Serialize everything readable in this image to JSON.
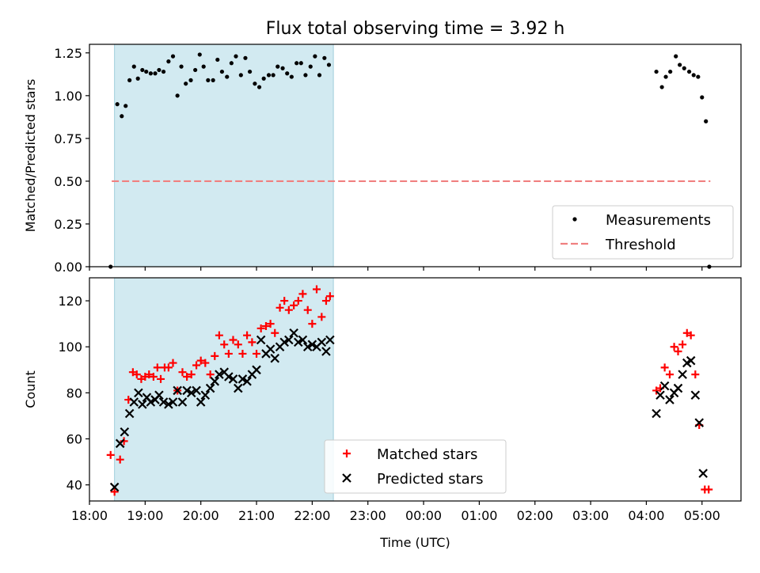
{
  "chart_data": [
    {
      "type": "scatter",
      "title": "Flux total observing time = 3.92 h",
      "xlabel": "",
      "ylabel": "Matched/Predicted stars",
      "xlim": [
        18.0,
        29.7
      ],
      "ylim": [
        0.0,
        1.3
      ],
      "yticks": [
        "0.00",
        "0.25",
        "0.50",
        "0.75",
        "1.00",
        "1.25"
      ],
      "yticks_values": [
        0,
        0.25,
        0.5,
        0.75,
        1.0,
        1.25
      ],
      "shaded_region": {
        "x": [
          18.45,
          22.38
        ],
        "color": "#add8e6"
      },
      "threshold": {
        "name": "Threshold",
        "y": 0.5,
        "x": [
          18.4,
          29.15
        ],
        "color": "#f08080"
      },
      "legend": {
        "placement": "lower right",
        "entries": [
          "Measurements",
          "Threshold"
        ]
      },
      "series": [
        {
          "name": "Measurements",
          "color": "#000000",
          "points": [
            [
              18.38,
              0.0
            ],
            [
              18.5,
              0.95
            ],
            [
              18.58,
              0.88
            ],
            [
              18.65,
              0.94
            ],
            [
              18.72,
              1.09
            ],
            [
              18.8,
              1.17
            ],
            [
              18.87,
              1.1
            ],
            [
              18.95,
              1.15
            ],
            [
              19.02,
              1.14
            ],
            [
              19.1,
              1.13
            ],
            [
              19.18,
              1.13
            ],
            [
              19.25,
              1.15
            ],
            [
              19.33,
              1.14
            ],
            [
              19.42,
              1.2
            ],
            [
              19.5,
              1.23
            ],
            [
              19.58,
              1.0
            ],
            [
              19.65,
              1.17
            ],
            [
              19.73,
              1.07
            ],
            [
              19.82,
              1.09
            ],
            [
              19.9,
              1.15
            ],
            [
              19.98,
              1.24
            ],
            [
              20.05,
              1.17
            ],
            [
              20.13,
              1.09
            ],
            [
              20.22,
              1.09
            ],
            [
              20.3,
              1.21
            ],
            [
              20.38,
              1.14
            ],
            [
              20.47,
              1.11
            ],
            [
              20.55,
              1.19
            ],
            [
              20.63,
              1.23
            ],
            [
              20.72,
              1.12
            ],
            [
              20.8,
              1.22
            ],
            [
              20.88,
              1.14
            ],
            [
              20.97,
              1.07
            ],
            [
              21.05,
              1.05
            ],
            [
              21.13,
              1.1
            ],
            [
              21.22,
              1.12
            ],
            [
              21.3,
              1.12
            ],
            [
              21.38,
              1.17
            ],
            [
              21.47,
              1.16
            ],
            [
              21.55,
              1.13
            ],
            [
              21.63,
              1.11
            ],
            [
              21.72,
              1.19
            ],
            [
              21.8,
              1.19
            ],
            [
              21.88,
              1.12
            ],
            [
              21.97,
              1.17
            ],
            [
              22.05,
              1.23
            ],
            [
              22.13,
              1.12
            ],
            [
              22.22,
              1.22
            ],
            [
              22.3,
              1.18
            ],
            [
              28.18,
              1.14
            ],
            [
              28.28,
              1.05
            ],
            [
              28.35,
              1.11
            ],
            [
              28.43,
              1.14
            ],
            [
              28.53,
              1.23
            ],
            [
              28.6,
              1.18
            ],
            [
              28.68,
              1.16
            ],
            [
              28.77,
              1.14
            ],
            [
              28.85,
              1.12
            ],
            [
              28.93,
              1.11
            ],
            [
              29.0,
              0.99
            ],
            [
              29.07,
              0.85
            ],
            [
              29.13,
              0.0
            ]
          ]
        }
      ]
    },
    {
      "type": "scatter",
      "title": "",
      "xlabel": "Time (UTC)",
      "ylabel": "Count",
      "xlim": [
        18.0,
        29.7
      ],
      "ylim": [
        33,
        130
      ],
      "yticks": [
        "40",
        "60",
        "80",
        "100",
        "120"
      ],
      "yticks_values": [
        40,
        60,
        80,
        100,
        120
      ],
      "xticks": [
        "18:00",
        "19:00",
        "20:00",
        "21:00",
        "22:00",
        "23:00",
        "00:00",
        "01:00",
        "02:00",
        "03:00",
        "04:00",
        "05:00"
      ],
      "xticks_values": [
        18,
        19,
        20,
        21,
        22,
        23,
        24,
        25,
        26,
        27,
        28,
        29
      ],
      "shaded_region": {
        "x": [
          18.45,
          22.38
        ],
        "color": "#add8e6"
      },
      "legend": {
        "placement": "lower center",
        "entries": [
          "Matched stars",
          "Predicted stars"
        ]
      },
      "series": [
        {
          "name": "Matched stars",
          "marker": "plus",
          "color": "#ff0000",
          "points": [
            [
              18.38,
              53
            ],
            [
              18.45,
              37
            ],
            [
              18.55,
              51
            ],
            [
              18.62,
              59
            ],
            [
              18.7,
              77
            ],
            [
              18.78,
              89
            ],
            [
              18.85,
              88
            ],
            [
              18.93,
              86
            ],
            [
              19.0,
              87
            ],
            [
              19.07,
              88
            ],
            [
              19.15,
              87
            ],
            [
              19.22,
              91
            ],
            [
              19.28,
              86
            ],
            [
              19.35,
              91
            ],
            [
              19.42,
              91
            ],
            [
              19.5,
              93
            ],
            [
              19.58,
              81
            ],
            [
              19.67,
              89
            ],
            [
              19.75,
              87
            ],
            [
              19.83,
              88
            ],
            [
              19.92,
              92
            ],
            [
              20.0,
              94
            ],
            [
              20.08,
              93
            ],
            [
              20.17,
              88
            ],
            [
              20.25,
              96
            ],
            [
              20.33,
              105
            ],
            [
              20.42,
              101
            ],
            [
              20.5,
              97
            ],
            [
              20.58,
              103
            ],
            [
              20.67,
              101
            ],
            [
              20.75,
              97
            ],
            [
              20.83,
              105
            ],
            [
              20.92,
              102
            ],
            [
              21.0,
              97
            ],
            [
              21.08,
              108
            ],
            [
              21.17,
              109
            ],
            [
              21.25,
              110
            ],
            [
              21.33,
              106
            ],
            [
              21.42,
              117
            ],
            [
              21.5,
              120
            ],
            [
              21.58,
              116
            ],
            [
              21.67,
              118
            ],
            [
              21.75,
              120
            ],
            [
              21.83,
              123
            ],
            [
              21.92,
              116
            ],
            [
              22.0,
              110
            ],
            [
              22.08,
              125
            ],
            [
              22.17,
              113
            ],
            [
              22.25,
              120
            ],
            [
              22.32,
              122
            ],
            [
              28.18,
              81
            ],
            [
              28.25,
              82
            ],
            [
              28.33,
              91
            ],
            [
              28.42,
              88
            ],
            [
              28.5,
              100
            ],
            [
              28.57,
              98
            ],
            [
              28.65,
              101
            ],
            [
              28.73,
              106
            ],
            [
              28.8,
              105
            ],
            [
              28.88,
              88
            ],
            [
              28.95,
              66
            ],
            [
              29.05,
              38
            ],
            [
              29.12,
              38
            ]
          ]
        },
        {
          "name": "Predicted stars",
          "marker": "x",
          "color": "#000000",
          "points": [
            [
              18.45,
              39
            ],
            [
              18.55,
              58
            ],
            [
              18.63,
              63
            ],
            [
              18.72,
              71
            ],
            [
              18.8,
              76
            ],
            [
              18.88,
              80
            ],
            [
              18.95,
              75
            ],
            [
              19.03,
              78
            ],
            [
              19.1,
              76
            ],
            [
              19.18,
              77
            ],
            [
              19.25,
              79
            ],
            [
              19.33,
              76
            ],
            [
              19.42,
              75
            ],
            [
              19.5,
              76
            ],
            [
              19.58,
              81
            ],
            [
              19.67,
              76
            ],
            [
              19.75,
              81
            ],
            [
              19.83,
              80
            ],
            [
              19.92,
              81
            ],
            [
              20.0,
              76
            ],
            [
              20.08,
              79
            ],
            [
              20.17,
              82
            ],
            [
              20.25,
              85
            ],
            [
              20.33,
              88
            ],
            [
              20.42,
              89
            ],
            [
              20.5,
              87
            ],
            [
              20.58,
              86
            ],
            [
              20.67,
              82
            ],
            [
              20.75,
              86
            ],
            [
              20.83,
              85
            ],
            [
              20.92,
              88
            ],
            [
              21.0,
              90
            ],
            [
              21.08,
              103
            ],
            [
              21.17,
              97
            ],
            [
              21.25,
              99
            ],
            [
              21.33,
              95
            ],
            [
              21.42,
              100
            ],
            [
              21.5,
              102
            ],
            [
              21.58,
              103
            ],
            [
              21.67,
              106
            ],
            [
              21.75,
              102
            ],
            [
              21.83,
              103
            ],
            [
              21.92,
              100
            ],
            [
              22.0,
              101
            ],
            [
              22.08,
              100
            ],
            [
              22.17,
              102
            ],
            [
              22.25,
              98
            ],
            [
              22.32,
              103
            ],
            [
              28.18,
              71
            ],
            [
              28.25,
              79
            ],
            [
              28.33,
              83
            ],
            [
              28.42,
              77
            ],
            [
              28.5,
              80
            ],
            [
              28.57,
              82
            ],
            [
              28.65,
              88
            ],
            [
              28.73,
              93
            ],
            [
              28.8,
              94
            ],
            [
              28.88,
              79
            ],
            [
              28.95,
              67
            ],
            [
              29.02,
              45
            ]
          ]
        }
      ]
    }
  ]
}
